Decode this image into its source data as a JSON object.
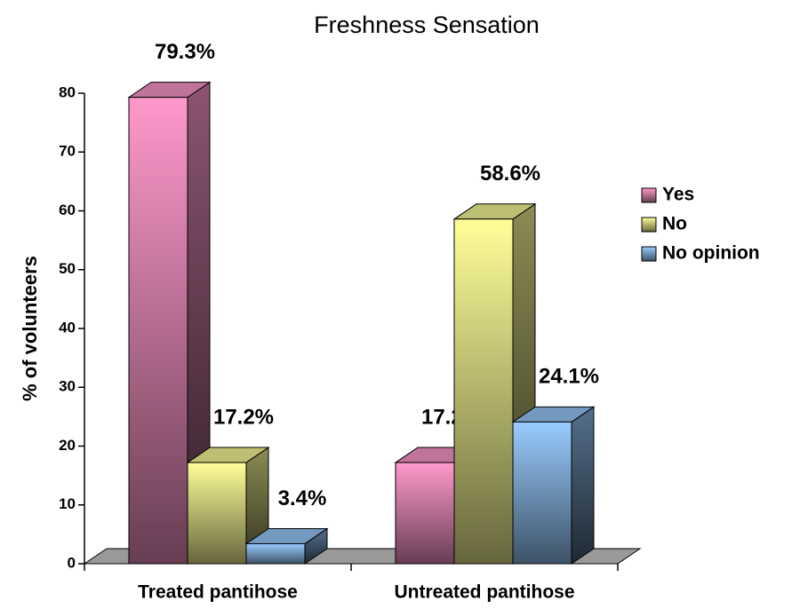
{
  "chart_data": {
    "type": "bar3d",
    "title": "Freshness Sensation",
    "y_label": "% of volunteers",
    "categories": [
      "Treated pantihose",
      "Untreated pantihose"
    ],
    "series": [
      {
        "name": "Yes",
        "color": "#ff99cc",
        "values": [
          79.3,
          17.2
        ],
        "value_labels": [
          "79.3%",
          "17.2%"
        ]
      },
      {
        "name": "No",
        "color": "#ffff99",
        "values": [
          17.2,
          58.6
        ],
        "value_labels": [
          "17.2%",
          "58.6%"
        ]
      },
      {
        "name": "No opinion",
        "color": "#99ccff",
        "values": [
          3.4,
          24.1
        ],
        "value_labels": [
          "3.4%",
          "24.1%"
        ]
      }
    ],
    "ylim": [
      0,
      80
    ],
    "yticks": [
      0,
      10,
      20,
      30,
      40,
      50,
      60,
      70,
      80
    ],
    "legend": "right",
    "title_color": "#3333cc"
  }
}
